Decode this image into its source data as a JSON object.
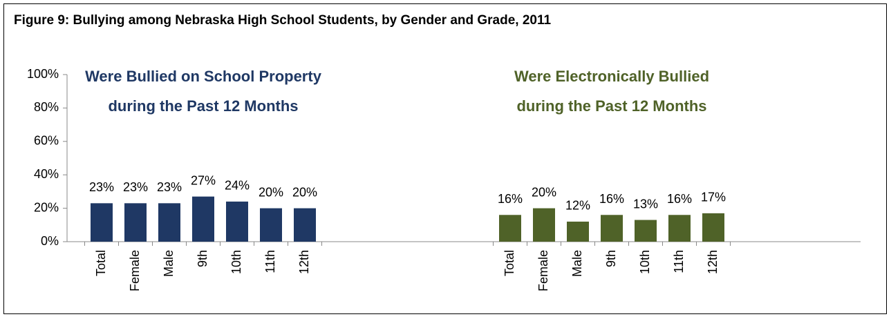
{
  "chart_data": {
    "type": "bar",
    "title": "Figure 9: Bullying among Nebraska High School Students, by Gender and Grade, 2011",
    "ylim": [
      0,
      100
    ],
    "yticks": [
      {
        "value": 0,
        "label": "0%"
      },
      {
        "value": 20,
        "label": "20%"
      },
      {
        "value": 40,
        "label": "40%"
      },
      {
        "value": 60,
        "label": "60%"
      },
      {
        "value": 80,
        "label": "80%"
      },
      {
        "value": 100,
        "label": "100%"
      }
    ],
    "groups": [
      {
        "title": [
          "Were Bullied on School Property",
          "during the Past 12 Months"
        ],
        "color": "#1f3864",
        "categories": [
          "Total",
          "Female",
          "Male",
          "9th",
          "10th",
          "11th",
          "12th"
        ],
        "values": [
          23,
          23,
          23,
          27,
          24,
          20,
          20
        ],
        "value_labels": [
          "23%",
          "23%",
          "23%",
          "27%",
          "24%",
          "20%",
          "20%"
        ]
      },
      {
        "title": [
          "Were Electronically Bullied",
          "during the Past 12 Months"
        ],
        "color": "#4f6228",
        "categories": [
          "Total",
          "Female",
          "Male",
          "9th",
          "10th",
          "11th",
          "12th"
        ],
        "values": [
          16,
          20,
          12,
          16,
          13,
          16,
          17
        ],
        "value_labels": [
          "16%",
          "20%",
          "12%",
          "16%",
          "13%",
          "16%",
          "17%"
        ]
      }
    ]
  }
}
